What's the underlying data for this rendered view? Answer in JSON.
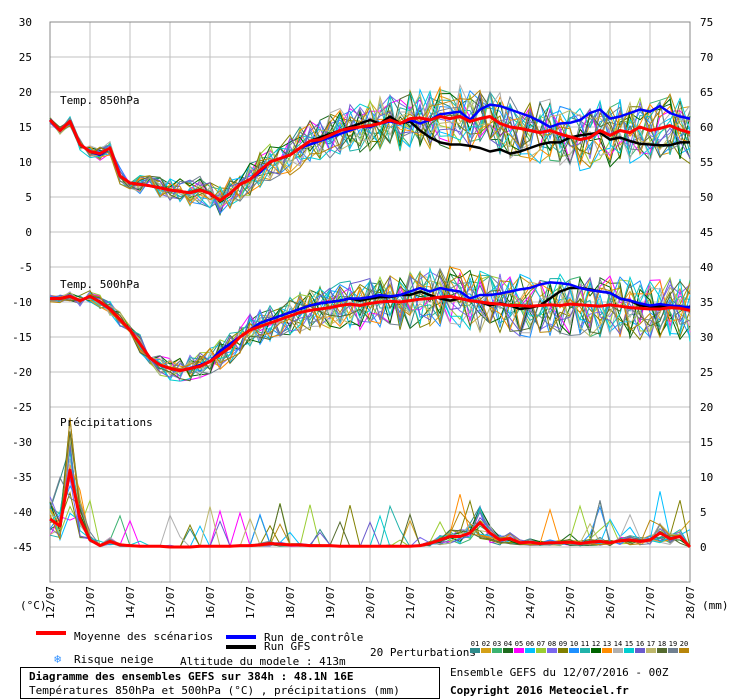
{
  "colors": {
    "mean": "#ff0000",
    "control": "#0000ff",
    "gfs": "#000000",
    "grid": "#c0c0c0",
    "perturbations": [
      "#2e8b8b",
      "#d4a017",
      "#3cb371",
      "#1e6b1e",
      "#ff00ff",
      "#00bfff",
      "#9acd32",
      "#7b68ee",
      "#808000",
      "#1e90ff",
      "#20b2aa",
      "#006400",
      "#ff8c00",
      "#b0b0b0",
      "#00ced1",
      "#6a5acd",
      "#bdb76b",
      "#556b2f",
      "#708090",
      "#b8860b"
    ]
  },
  "chart_data": {
    "type": "line",
    "title": "Diagramme des ensembles GEFS sur 384h : 48.1N 16E",
    "subtitle": "Températures 850hPa et 500hPa (°C) , précipitations (mm)",
    "x_labels": [
      "12/07",
      "13/07",
      "14/07",
      "15/07",
      "16/07",
      "17/07",
      "18/07",
      "19/07",
      "20/07",
      "21/07",
      "22/07",
      "23/07",
      "24/07",
      "25/07",
      "26/07",
      "27/07",
      "28/07"
    ],
    "left_axis": {
      "unit": "(°C)",
      "ticks": [
        30,
        25,
        20,
        15,
        10,
        5,
        0,
        -5,
        -10,
        -15,
        -20,
        -25,
        -30,
        -35,
        -40,
        -45
      ],
      "ylim": [
        -50,
        30
      ]
    },
    "right_axis": {
      "unit": "(mm)",
      "ticks": [
        75,
        70,
        65,
        60,
        55,
        50,
        45,
        40,
        35,
        30,
        25,
        20,
        15,
        10,
        5,
        0
      ]
    },
    "grid": true,
    "panels": [
      {
        "label": "Temp. 850hPa",
        "t": [
          0,
          6,
          12,
          18,
          24,
          30,
          36,
          42,
          48,
          54,
          60,
          66,
          72,
          78,
          84,
          90,
          96,
          102,
          108,
          114,
          120,
          126,
          132,
          138,
          144,
          150,
          156,
          162,
          168,
          174,
          180,
          186,
          192,
          198,
          204,
          210,
          216,
          222,
          228,
          234,
          240,
          246,
          252,
          258,
          264,
          270,
          276,
          282,
          288,
          294,
          300,
          306,
          312,
          318,
          324,
          330,
          336,
          342,
          348,
          354,
          360,
          366,
          372,
          378,
          384
        ],
        "mean": [
          16,
          14.5,
          15.8,
          12.5,
          11.5,
          11.2,
          12,
          8,
          7,
          6.8,
          6.6,
          6.3,
          6,
          5.8,
          5.6,
          6,
          5.5,
          4.5,
          5.5,
          6.8,
          7.5,
          8.8,
          10,
          10.5,
          11,
          12,
          13,
          13.2,
          13.8,
          14.5,
          14.8,
          15,
          15.2,
          15.5,
          16,
          15.5,
          16.2,
          16.3,
          16,
          16.5,
          16.2,
          16.5,
          15.8,
          16.2,
          16.5,
          15.5,
          15,
          14.8,
          14.5,
          14.2,
          14.5,
          14,
          13.6,
          13.2,
          13.5,
          14.5,
          13.8,
          14.5,
          14.2,
          15,
          14.5,
          14.8,
          15.2,
          14.6,
          14.2
        ],
        "control": [
          16,
          14.5,
          15.8,
          12.5,
          11.5,
          11,
          12,
          8,
          7,
          6.8,
          6.6,
          6.3,
          6,
          5.8,
          5.6,
          6,
          5.5,
          4.5,
          5.5,
          6.8,
          7.5,
          8.5,
          10,
          10.5,
          11,
          12,
          12.5,
          13,
          13.5,
          14,
          14.5,
          15,
          15,
          15.5,
          15.8,
          15.5,
          16,
          15.5,
          16,
          16.8,
          17,
          17.2,
          16,
          17.5,
          18.2,
          18,
          17.5,
          17,
          16.5,
          15.8,
          15,
          15.5,
          15.6,
          16,
          17,
          17.5,
          16.2,
          16.5,
          17,
          17.5,
          17.2,
          18,
          17,
          16.5,
          16.2
        ],
        "gfs": [
          16,
          14.5,
          15.8,
          12.5,
          11.5,
          11,
          12,
          8,
          7,
          6.8,
          6.6,
          6.3,
          6,
          5.8,
          5.6,
          6,
          5.5,
          4.5,
          5.5,
          6.8,
          7.5,
          8.8,
          10,
          10.5,
          11,
          12,
          13,
          13.5,
          14,
          14.5,
          15,
          15.5,
          16,
          15.5,
          16.5,
          15.5,
          15.8,
          14.5,
          13.5,
          12.8,
          12.5,
          12.5,
          12.3,
          12,
          11.5,
          11.8,
          11.2,
          11.5,
          12,
          12.5,
          12.8,
          12.8,
          13.5,
          13.8,
          14,
          14.2,
          13.2,
          13.5,
          13,
          12.6,
          12.5,
          12.4,
          12.4,
          12.8,
          12.8
        ]
      },
      {
        "label": "Temp. 500hPa",
        "t": [
          0,
          6,
          12,
          18,
          24,
          30,
          36,
          42,
          48,
          54,
          60,
          66,
          72,
          78,
          84,
          90,
          96,
          102,
          108,
          114,
          120,
          126,
          132,
          138,
          144,
          150,
          156,
          162,
          168,
          174,
          180,
          186,
          192,
          198,
          204,
          210,
          216,
          222,
          228,
          234,
          240,
          246,
          252,
          258,
          264,
          270,
          276,
          282,
          288,
          294,
          300,
          306,
          312,
          318,
          324,
          330,
          336,
          342,
          348,
          354,
          360,
          366,
          372,
          378,
          384
        ],
        "mean": [
          -9.5,
          -9.5,
          -9.2,
          -9.8,
          -9.2,
          -10,
          -11,
          -12.5,
          -14,
          -16,
          -18,
          -19,
          -19.5,
          -19.8,
          -19.5,
          -19.2,
          -18.5,
          -17.5,
          -16.5,
          -15,
          -14,
          -13.5,
          -13,
          -12.5,
          -12,
          -11.5,
          -11.2,
          -11,
          -10.8,
          -10.5,
          -10.3,
          -10.5,
          -10.2,
          -10,
          -9.9,
          -10,
          -9.8,
          -9.6,
          -9.5,
          -9.3,
          -9.2,
          -9.5,
          -9.8,
          -10,
          -10.2,
          -10.3,
          -10.5,
          -10.5,
          -10.6,
          -10.5,
          -10.4,
          -10.5,
          -10.3,
          -10.4,
          -10.5,
          -10.6,
          -10.4,
          -10.6,
          -10.8,
          -10.9,
          -11,
          -11,
          -10.8,
          -10.9,
          -11.2
        ],
        "control": [
          -9.5,
          -9.5,
          -9.2,
          -9.8,
          -9.2,
          -10,
          -11,
          -12.5,
          -14,
          -16,
          -18,
          -19,
          -19.5,
          -19.8,
          -19.5,
          -19,
          -18.5,
          -17,
          -16,
          -15,
          -14,
          -13,
          -12.5,
          -12,
          -11.5,
          -11,
          -10.5,
          -10.2,
          -10,
          -9.8,
          -9.5,
          -9.5,
          -9.3,
          -9,
          -9.2,
          -9,
          -8.5,
          -8,
          -8.5,
          -8,
          -8.3,
          -8.5,
          -9.5,
          -9,
          -9,
          -8.8,
          -8.5,
          -8.2,
          -8,
          -7.5,
          -7.2,
          -7.3,
          -7.5,
          -8,
          -8.3,
          -8.5,
          -8.7,
          -9.5,
          -9.8,
          -10.2,
          -10.5,
          -10.3,
          -10.5,
          -10.6,
          -10.8
        ],
        "gfs": [
          -9.5,
          -9.5,
          -9.2,
          -9.8,
          -9.2,
          -10,
          -11,
          -12.5,
          -14,
          -16,
          -18,
          -19,
          -19.5,
          -19.8,
          -19.5,
          -19,
          -18.5,
          -17,
          -16,
          -15,
          -14,
          -13,
          -12.5,
          -12,
          -11.5,
          -11,
          -10.5,
          -10.2,
          -10,
          -9.8,
          -9.5,
          -9.8,
          -9.5,
          -9.3,
          -9.3,
          -9,
          -9,
          -8.5,
          -9,
          -9.5,
          -9.8,
          -9.5,
          -9.8,
          -10,
          -10.5,
          -10.2,
          -10.5,
          -11,
          -10.8,
          -10.5,
          -9.5,
          -8.5,
          -8,
          -8,
          -8.2,
          -8.5,
          -8.7,
          -9.5,
          -9.8,
          -10.5,
          -10.6,
          -10.6,
          -10.8,
          -10.8,
          -10.7
        ]
      },
      {
        "label": "Précipitations",
        "t": [
          0,
          6,
          12,
          18,
          24,
          30,
          36,
          42,
          48,
          54,
          60,
          66,
          72,
          78,
          84,
          90,
          96,
          102,
          108,
          114,
          120,
          126,
          132,
          138,
          144,
          150,
          156,
          162,
          168,
          174,
          180,
          186,
          192,
          198,
          204,
          210,
          216,
          222,
          228,
          234,
          240,
          246,
          252,
          258,
          264,
          270,
          276,
          282,
          288,
          294,
          300,
          306,
          312,
          318,
          324,
          330,
          336,
          342,
          348,
          354,
          360,
          366,
          372,
          378,
          384
        ],
        "mean": [
          4,
          3,
          11,
          4,
          1,
          0.2,
          0.8,
          0.3,
          0.2,
          0.1,
          0.1,
          0.1,
          0,
          0,
          0,
          0.1,
          0.1,
          0.1,
          0.1,
          0.2,
          0.2,
          0.3,
          0.5,
          0.4,
          0.3,
          0.3,
          0.2,
          0.2,
          0.2,
          0.1,
          0.1,
          0.1,
          0.1,
          0.1,
          0.1,
          0.1,
          0.1,
          0.2,
          0.5,
          1,
          1.5,
          1.5,
          2,
          3.5,
          2,
          1,
          1.2,
          0.6,
          0.7,
          0.5,
          0.6,
          0.6,
          0.7,
          0.5,
          0.7,
          0.8,
          0.6,
          0.9,
          1,
          0.8,
          1,
          2,
          1.2,
          1.5,
          0
        ]
      }
    ],
    "perturbation_labels": [
      "01",
      "02",
      "03",
      "04",
      "05",
      "06",
      "07",
      "08",
      "09",
      "10",
      "11",
      "12",
      "13",
      "14",
      "15",
      "16",
      "17",
      "18",
      "19",
      "20"
    ]
  },
  "legend": {
    "mean_label": "Moyenne des scénarios",
    "control_label": "Run de contrôle",
    "gfs_label": "Run GFS",
    "snow_label": "Risque neige",
    "altitude_label": "Altitude du modele : 413m",
    "perturbations_label": "20 Perturbations",
    "ensemble_label": "Ensemble GEFS du 12/07/2016 - 00Z",
    "copyright": "Copyright 2016 Meteociel.fr",
    "snow_icon": "snowflake-icon"
  }
}
